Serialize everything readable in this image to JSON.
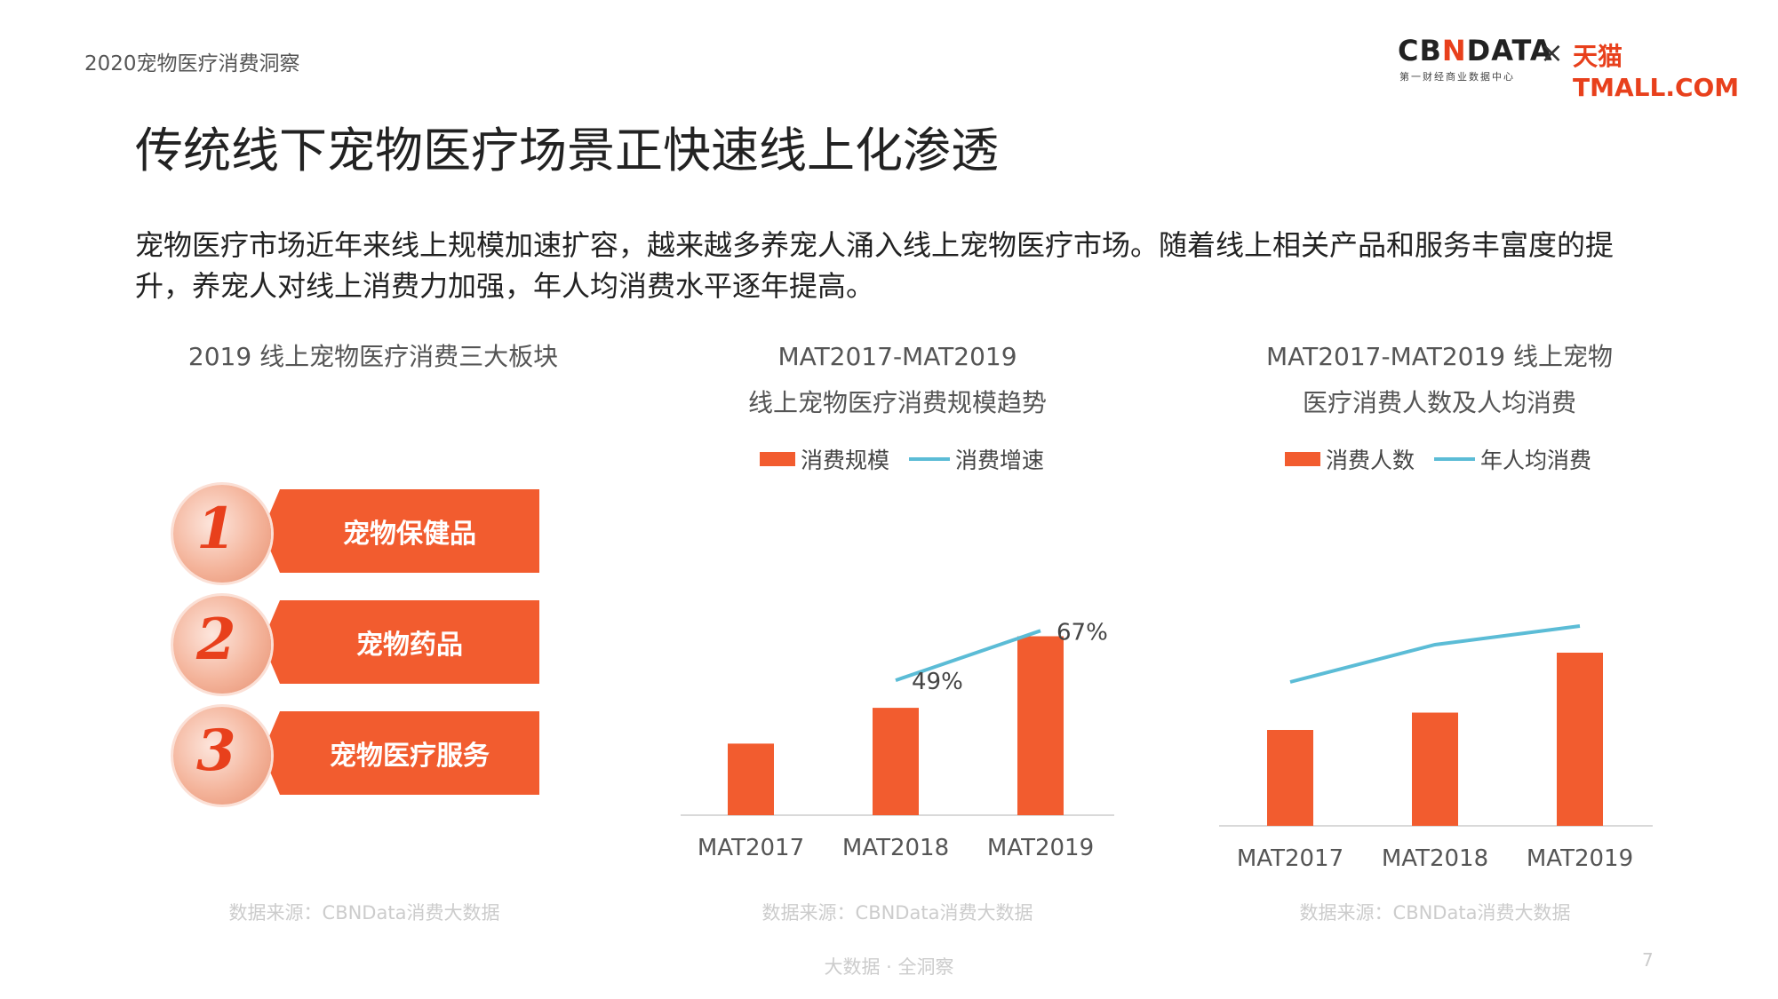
{
  "header": {
    "report_title": "2020宠物医疗消费洞察",
    "logo_cbn_prefix": "CB",
    "logo_cbn_n": "N",
    "logo_cbn_suffix": "DATA",
    "logo_cbn_sub": "第一财经商业数据中心",
    "logo_x": "×",
    "logo_tmall": "天猫TMALL.COM"
  },
  "page_title": "传统线下宠物医疗场景正快速线上化渗透",
  "intro": "宠物医疗市场近年来线上规模加速扩容，越来越多养宠人涌入线上宠物医疗市场。随着线上相关产品和服务丰富度的提升，养宠人对线上消费力加强，年人均消费水平逐年提高。",
  "left_panel": {
    "title": "2019 线上宠物医疗消费三大板块",
    "items": [
      {
        "number": "1",
        "label": "宠物保健品"
      },
      {
        "number": "2",
        "label": "宠物药品"
      },
      {
        "number": "3",
        "label": "宠物医疗服务"
      }
    ],
    "source": "数据来源：CBNData消费大数据"
  },
  "colors": {
    "bar": "#f25c2f",
    "line": "#5bbcd6",
    "axis": "#d9d9d9"
  },
  "chart_data": [
    {
      "type": "bar",
      "title_line1": "MAT2017-MAT2019",
      "title_line2": "线上宠物医疗消费规模趋势",
      "categories": [
        "MAT2017",
        "MAT2018",
        "MAT2019"
      ],
      "series": [
        {
          "name": "消费规模",
          "type": "bar",
          "values": [
            26,
            39,
            65
          ]
        },
        {
          "name": "消费增速",
          "type": "line",
          "values": [
            null,
            49,
            67
          ],
          "labels": [
            "",
            "49%",
            "67%"
          ]
        }
      ],
      "source": "数据来源：CBNData消费大数据"
    },
    {
      "type": "bar",
      "title_line1": "MAT2017-MAT2019 线上宠物",
      "title_line2": "医疗消费人数及人均消费",
      "categories": [
        "MAT2017",
        "MAT2018",
        "MAT2019"
      ],
      "series": [
        {
          "name": "消费人数",
          "type": "bar",
          "values": [
            36,
            42.5,
            65
          ]
        },
        {
          "name": "年人均消费",
          "type": "line",
          "values": [
            54,
            68,
            75
          ]
        }
      ],
      "source": "数据来源：CBNData消费大数据"
    }
  ],
  "footer": {
    "text": "大数据 · 全洞察",
    "page_number": "7"
  }
}
